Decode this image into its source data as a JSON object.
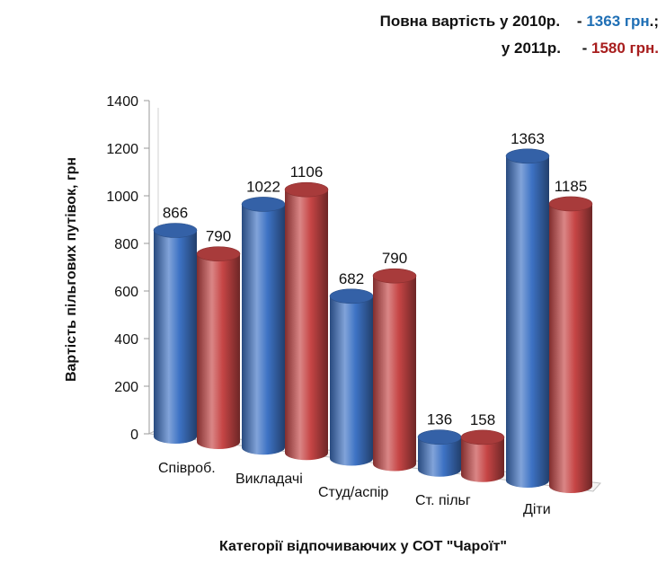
{
  "header": {
    "line1_text": "Повна вартість у 2010р.    - ",
    "line1_value": "1363 грн",
    "line1_suffix": ".;",
    "line2_text": "у 2011р.     - ",
    "line2_value": "1580 грн."
  },
  "chart_data": {
    "type": "bar",
    "style": "3d-cylinder",
    "title": "",
    "xlabel": "Категорії відпочиваючих у СОТ  \"Чароїт\"",
    "ylabel": "Вартість пільгових путівок, грн",
    "ylim": [
      0,
      1400
    ],
    "yticks": [
      "0",
      "200",
      "400",
      "600",
      "800",
      "1000",
      "1200",
      "1400"
    ],
    "categories": [
      "Співроб.",
      "Викладачі",
      "Студ/аспір",
      "Ст. пільг",
      "Діти"
    ],
    "series": [
      {
        "values": [
          866,
          1022,
          682,
          136,
          1363
        ],
        "color": "#3d72c4"
      },
      {
        "values": [
          790,
          1106,
          790,
          158,
          1185
        ],
        "color": "#c64545"
      }
    ],
    "data_labels": [
      [
        "866",
        "1022",
        "682",
        "136",
        "1363"
      ],
      [
        "790",
        "1106",
        "790",
        "158",
        "1185"
      ]
    ],
    "grid": false,
    "legend": "none"
  }
}
